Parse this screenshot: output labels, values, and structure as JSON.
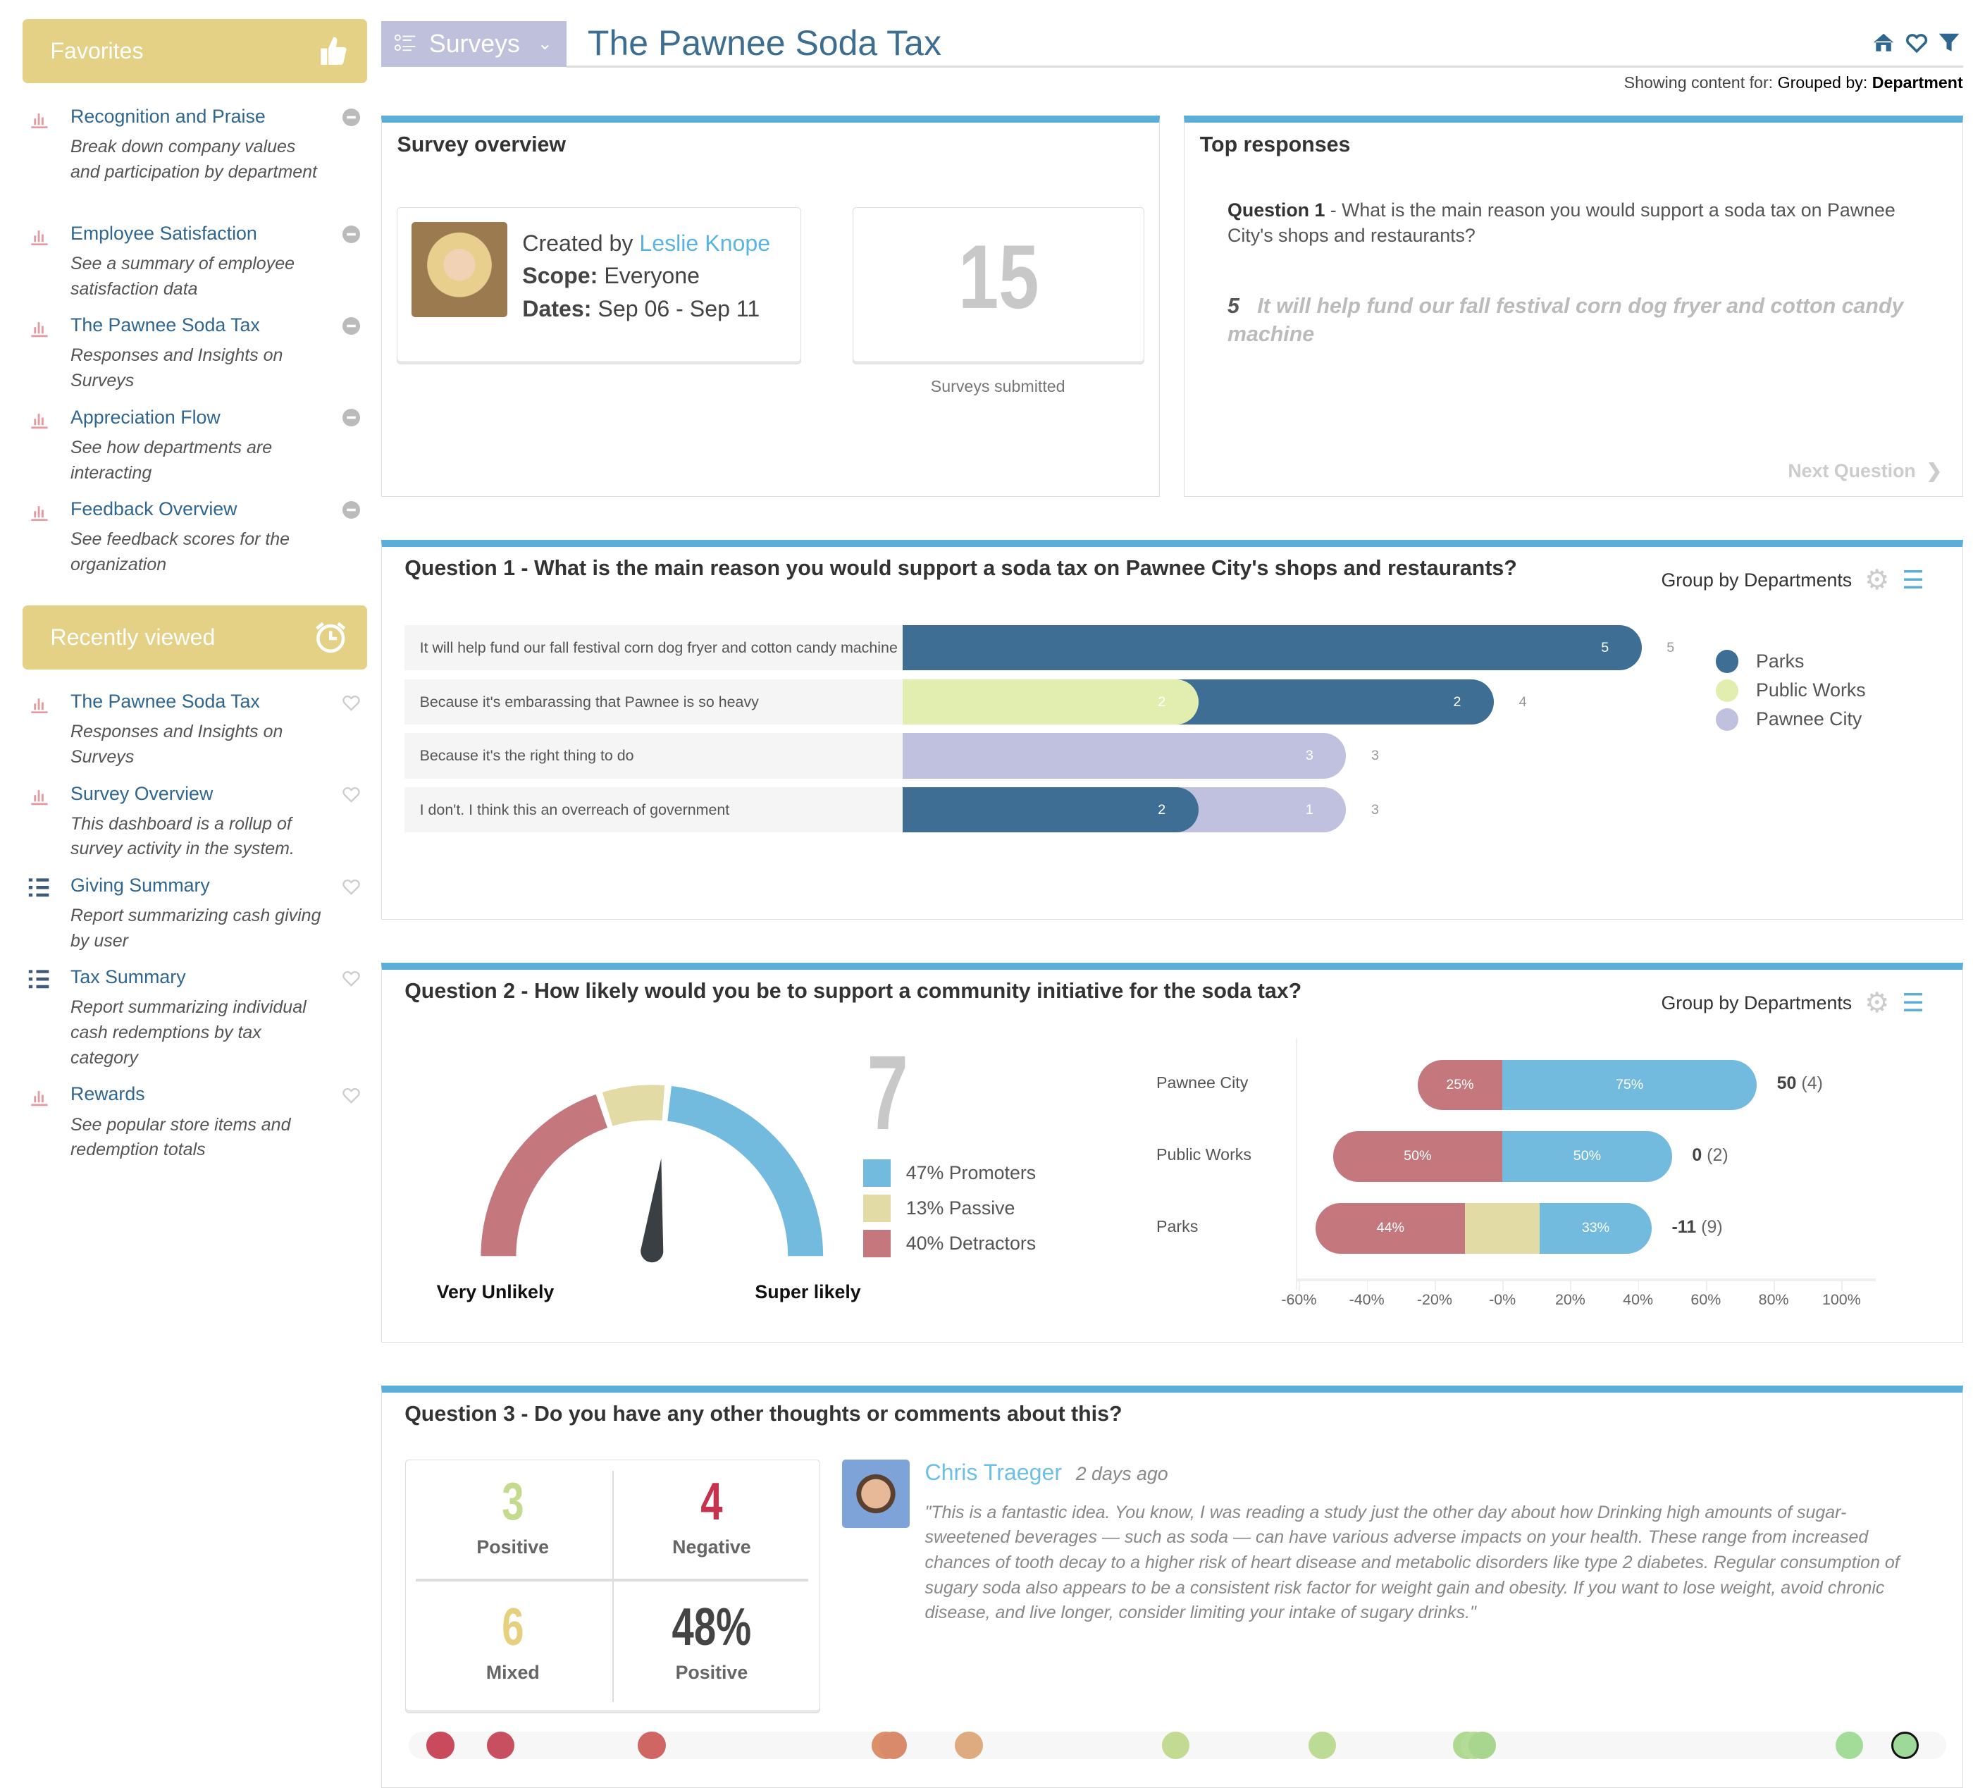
{
  "sidebar": {
    "favorites_label": "Favorites",
    "favorites_icon": "thumbs-up-icon",
    "favorites": [
      {
        "title": "Recognition and Praise",
        "desc": "Break down company values and participation by department",
        "icon": "bar-chart-icon"
      },
      {
        "title": "Employee Satisfaction",
        "desc": "See a summary of employee satisfaction data",
        "icon": "bar-chart-icon"
      },
      {
        "title": "The Pawnee Soda Tax",
        "desc": "Responses and Insights on Surveys",
        "icon": "bar-chart-icon"
      },
      {
        "title": "Appreciation Flow",
        "desc": "See how departments are interacting",
        "icon": "bar-chart-icon"
      },
      {
        "title": "Feedback Overview",
        "desc": "See feedback scores for the organization",
        "icon": "bar-chart-icon"
      }
    ],
    "recent_label": "Recently viewed",
    "recent_icon": "alarm-clock-icon",
    "recent": [
      {
        "title": "The Pawnee Soda Tax",
        "desc": "Responses and Insights on Surveys",
        "icon": "bar-chart-icon"
      },
      {
        "title": "Survey Overview",
        "desc": "This dashboard is a rollup of survey activity in the system.",
        "icon": "bar-chart-icon"
      },
      {
        "title": "Giving Summary",
        "desc": "Report summarizing cash giving by user",
        "icon": "list-icon"
      },
      {
        "title": "Tax Summary",
        "desc": "Report summarizing individual cash redemptions by tax category",
        "icon": "list-icon"
      },
      {
        "title": "Rewards",
        "desc": "See popular store items and redemption totals",
        "icon": "bar-chart-icon"
      }
    ]
  },
  "header": {
    "module": "Surveys",
    "title": "The Pawnee Soda Tax",
    "showing_prefix": "Showing content for:",
    "showing_group": "Grouped by:",
    "showing_value": "Department"
  },
  "overview": {
    "title": "Survey overview",
    "created_by": "Created by",
    "creator": "Leslie Knope",
    "scope_label": "Scope:",
    "scope": "Everyone",
    "dates_label": "Dates:",
    "dates": "Sep 06 - Sep 11",
    "count": "15",
    "count_label": "Surveys submitted"
  },
  "top_responses": {
    "title": "Top responses",
    "question_label": "Question 1",
    "question_text": " - What is the main reason you would support a soda tax on Pawnee City's shops and restaurants?",
    "answer_count": "5",
    "answer_text": "It will help fund our fall festival corn dog fryer and cotton candy machine",
    "next": "Next Question"
  },
  "group_label": "Group by Departments",
  "colors": {
    "parks": "#3e6e93",
    "public_works": "#e1eeb0",
    "pawnee_city": "#c0c0df",
    "promoter": "#72bbdf",
    "passive": "#e3dba6",
    "detractor": "#c4787d",
    "accent": "#5aaed8"
  },
  "chart_data": [
    {
      "type": "bar",
      "title": "Question 1 - What is the main reason you would support a soda tax on Pawnee City's shops and restaurants?",
      "categories": [
        "It will help fund our fall festival corn dog fryer and cotton candy machine",
        "Because it's embarassing that Pawnee is so heavy",
        "Because it's the right thing to do",
        "I don't. I think this an overreach of government"
      ],
      "series": [
        {
          "name": "Parks",
          "values": [
            5,
            2,
            0,
            2
          ],
          "color": "#3e6e93"
        },
        {
          "name": "Public Works",
          "values": [
            0,
            2,
            0,
            0
          ],
          "color": "#e1eeb0"
        },
        {
          "name": "Pawnee City",
          "values": [
            0,
            0,
            3,
            1
          ],
          "color": "#c0c0df"
        }
      ],
      "totals": [
        5,
        4,
        3,
        3
      ],
      "stacked": true,
      "legend": "right"
    },
    {
      "type": "bar",
      "title": "Question 2 - How likely would you be to support a community initiative for the soda tax?",
      "categories": [
        "Pawnee City",
        "Public Works",
        "Parks"
      ],
      "series": [
        {
          "name": "Detractors",
          "values": [
            25,
            50,
            44
          ],
          "color": "#c4787d"
        },
        {
          "name": "Passive",
          "values": [
            0,
            0,
            22
          ],
          "color": "#e3dba6"
        },
        {
          "name": "Promoters",
          "values": [
            75,
            50,
            33
          ],
          "color": "#72bbdf"
        }
      ],
      "scores": [
        "50",
        "0",
        "-11"
      ],
      "counts": [
        "(4)",
        "(2)",
        "(9)"
      ],
      "xticks": [
        "-60%",
        "-40%",
        "-20%",
        "-0%",
        "20%",
        "40%",
        "60%",
        "80%",
        "100%"
      ],
      "xlim": [
        -60,
        100
      ],
      "diverging": true
    }
  ],
  "q2": {
    "title": "Question 2 - How likely would you be to support a community initiative for the soda tax?",
    "nps": "7",
    "gauge": {
      "detractors": 40,
      "passive": 13,
      "promoters": 47,
      "needle": 0.53
    },
    "low_label": "Very Unlikely",
    "high_label": "Super likely",
    "legend": [
      "47% Promoters",
      "13% Passive",
      "40% Detractors"
    ]
  },
  "q3": {
    "title": "Question 3 - Do you have any other thoughts or comments about this?",
    "positive": "3",
    "positive_label": "Positive",
    "negative": "4",
    "negative_label": "Negative",
    "mixed": "6",
    "mixed_label": "Mixed",
    "pct": "48%",
    "pct_label": "Positive",
    "author": "Chris Traeger",
    "when": "2 days ago",
    "comment": "\"This is a fantastic idea. You know, I was reading a study just the other day about how Drinking high amounts of sugar-sweetened beverages — such as soda — can have various adverse impacts on your health. These range from increased chances of tooth decay to a higher risk of heart disease and metabolic disorders like type 2 diabetes. Regular consumption of sugary soda also appears to be a consistent risk factor for weight gain and obesity. If you want to lose weight, avoid chronic disease, and live longer, consider limiting your intake of sugary drinks.\"",
    "sentiment_dots": [
      {
        "score": 0.01,
        "color": "#c84a5c"
      },
      {
        "score": 0.05,
        "color": "#c84f60"
      },
      {
        "score": 0.15,
        "color": "#cf6663"
      },
      {
        "score": 0.305,
        "color": "#dc906a"
      },
      {
        "score": 0.31,
        "color": "#d98a6a"
      },
      {
        "score": 0.36,
        "color": "#deab80"
      },
      {
        "score": 0.497,
        "color": "#c3da92"
      },
      {
        "score": 0.594,
        "color": "#bcdb94"
      },
      {
        "score": 0.69,
        "color": "#aed991"
      },
      {
        "score": 0.695,
        "color": "#b5dc96"
      },
      {
        "score": 0.7,
        "color": "#a8d68e"
      },
      {
        "score": 0.943,
        "color": "#a3dc98",
        "selected": false
      },
      {
        "score": 0.98,
        "color": "#9fd999",
        "selected": true
      }
    ]
  }
}
